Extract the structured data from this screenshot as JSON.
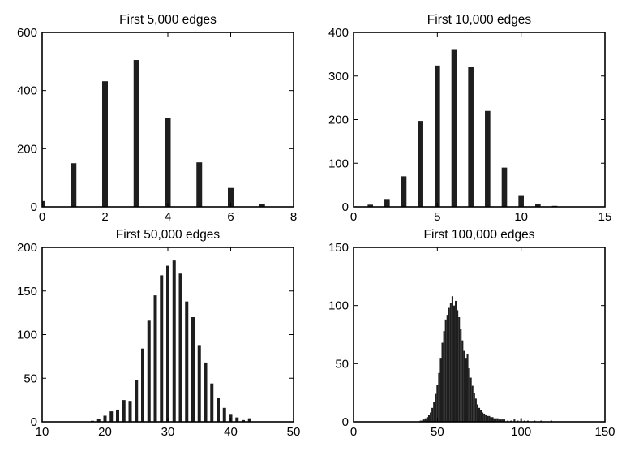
{
  "chart_data": [
    {
      "type": "bar",
      "title": "First 5,000 edges",
      "xlabel": "",
      "ylabel": "",
      "xlim": [
        0,
        8
      ],
      "ylim": [
        0,
        600
      ],
      "xticks": [
        0,
        2,
        4,
        6,
        8
      ],
      "yticks": [
        0,
        200,
        400,
        600
      ],
      "x": [
        0,
        1,
        2,
        3,
        4,
        5,
        6,
        7
      ],
      "values": [
        20,
        150,
        432,
        505,
        307,
        153,
        65,
        10
      ],
      "grid": false
    },
    {
      "type": "bar",
      "title": "First 10,000 edges",
      "xlabel": "",
      "ylabel": "",
      "xlim": [
        0,
        15
      ],
      "ylim": [
        0,
        400
      ],
      "xticks": [
        0,
        5,
        10,
        15
      ],
      "yticks": [
        0,
        100,
        200,
        300,
        400
      ],
      "x": [
        1,
        2,
        3,
        4,
        5,
        6,
        7,
        8,
        9,
        10,
        11,
        12
      ],
      "values": [
        5,
        18,
        70,
        197,
        324,
        360,
        320,
        220,
        90,
        25,
        7,
        2
      ],
      "grid": false
    },
    {
      "type": "bar",
      "title": "First 50,000 edges",
      "xlabel": "",
      "ylabel": "",
      "xlim": [
        10,
        50
      ],
      "ylim": [
        0,
        200
      ],
      "xticks": [
        10,
        20,
        30,
        40,
        50
      ],
      "yticks": [
        0,
        50,
        100,
        150,
        200
      ],
      "x": [
        18,
        19,
        20,
        21,
        22,
        23,
        24,
        25,
        26,
        27,
        28,
        29,
        30,
        31,
        32,
        33,
        34,
        35,
        36,
        37,
        38,
        39,
        40,
        41,
        42,
        43
      ],
      "values": [
        1,
        3,
        7,
        12,
        14,
        25,
        24,
        48,
        84,
        116,
        145,
        168,
        179,
        185,
        170,
        138,
        120,
        88,
        68,
        44,
        27,
        16,
        9,
        5,
        2,
        4
      ],
      "grid": false
    },
    {
      "type": "bar",
      "title": "First 100,000 edges",
      "xlabel": "",
      "ylabel": "",
      "xlim": [
        0,
        150
      ],
      "ylim": [
        0,
        150
      ],
      "xticks": [
        0,
        50,
        100,
        150
      ],
      "yticks": [
        0,
        50,
        100,
        150
      ],
      "x": [
        40,
        41,
        42,
        43,
        44,
        45,
        46,
        47,
        48,
        49,
        50,
        51,
        52,
        53,
        54,
        55,
        56,
        57,
        58,
        59,
        60,
        61,
        62,
        63,
        64,
        65,
        66,
        67,
        68,
        69,
        70,
        71,
        72,
        73,
        74,
        75,
        76,
        77,
        78,
        79,
        80,
        81,
        82,
        83,
        84,
        85,
        86,
        87,
        88,
        89,
        90,
        92,
        94,
        96,
        98,
        100,
        102,
        104,
        108,
        112,
        118
      ],
      "values": [
        1,
        1,
        2,
        3,
        4,
        6,
        8,
        12,
        17,
        24,
        32,
        42,
        55,
        68,
        78,
        88,
        92,
        98,
        102,
        108,
        100,
        104,
        96,
        90,
        80,
        70,
        61,
        55,
        58,
        46,
        38,
        31,
        25,
        20,
        15,
        12,
        10,
        8,
        7,
        6,
        5,
        5,
        4,
        4,
        3,
        3,
        3,
        2,
        2,
        2,
        2,
        1,
        1,
        2,
        1,
        3,
        1,
        1,
        1,
        1,
        1
      ],
      "grid": false
    }
  ]
}
